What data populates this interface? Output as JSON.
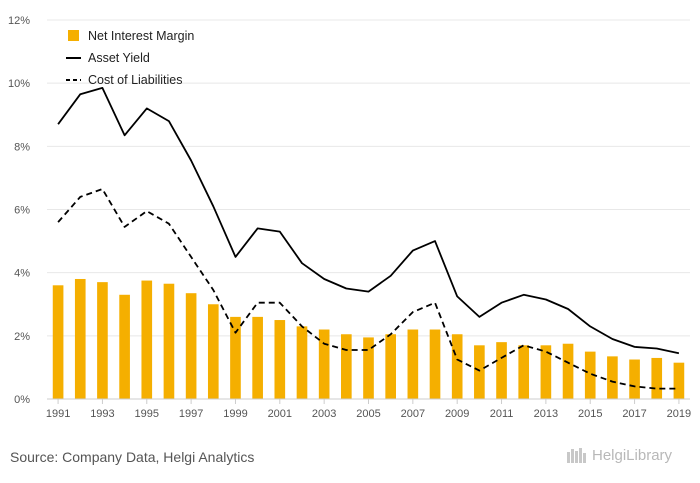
{
  "source": "Source: Company Data, Helgi Analytics",
  "brand": "HelgiLibrary",
  "colors": {
    "bar": "#F5AF00",
    "line": "#000000",
    "grid": "#e8e8e8",
    "tick": "#555555"
  },
  "chart_data": {
    "type": "bar",
    "x": [
      "1991",
      "1992",
      "1993",
      "1994",
      "1995",
      "1996",
      "1997",
      "1998",
      "1999",
      "2000",
      "2001",
      "2002",
      "2003",
      "2004",
      "2005",
      "2006",
      "2007",
      "2008",
      "2009",
      "2010",
      "2011",
      "2012",
      "2013",
      "2014",
      "2015",
      "2016",
      "2017",
      "2018",
      "2019"
    ],
    "xtick_labels": [
      "1991",
      "1993",
      "1995",
      "1997",
      "1999",
      "2001",
      "2003",
      "2005",
      "2007",
      "2009",
      "2011",
      "2013",
      "2015",
      "2017",
      "2019"
    ],
    "ytick_labels": [
      "0%",
      "2%",
      "4%",
      "6%",
      "8%",
      "10%",
      "12%"
    ],
    "ylim": [
      0,
      12
    ],
    "grid": true,
    "legend_position": "top-left",
    "series": [
      {
        "name": "Net Interest Margin",
        "type": "bar",
        "values": [
          3.6,
          3.8,
          3.7,
          3.3,
          3.75,
          3.65,
          3.35,
          3.0,
          2.6,
          2.6,
          2.5,
          2.3,
          2.2,
          2.05,
          1.95,
          2.05,
          2.2,
          2.2,
          2.05,
          1.7,
          1.8,
          1.7,
          1.7,
          1.75,
          1.5,
          1.35,
          1.25,
          1.3,
          1.15
        ]
      },
      {
        "name": "Asset Yield",
        "type": "line",
        "dash": "solid",
        "values": [
          8.7,
          9.65,
          9.85,
          8.35,
          9.2,
          8.8,
          7.55,
          6.1,
          4.5,
          5.4,
          5.3,
          4.3,
          3.8,
          3.5,
          3.4,
          3.9,
          4.7,
          5.0,
          3.25,
          2.6,
          3.05,
          3.3,
          3.15,
          2.85,
          2.3,
          1.9,
          1.65,
          1.6,
          1.45
        ]
      },
      {
        "name": "Cost of Liabilities",
        "type": "line",
        "dash": "dashed",
        "values": [
          5.6,
          6.4,
          6.65,
          5.45,
          5.95,
          5.55,
          4.5,
          3.45,
          2.1,
          3.05,
          3.05,
          2.3,
          1.75,
          1.55,
          1.55,
          2.05,
          2.75,
          3.05,
          1.25,
          0.9,
          1.3,
          1.7,
          1.5,
          1.15,
          0.8,
          0.55,
          0.4,
          0.33,
          0.33
        ]
      }
    ]
  }
}
